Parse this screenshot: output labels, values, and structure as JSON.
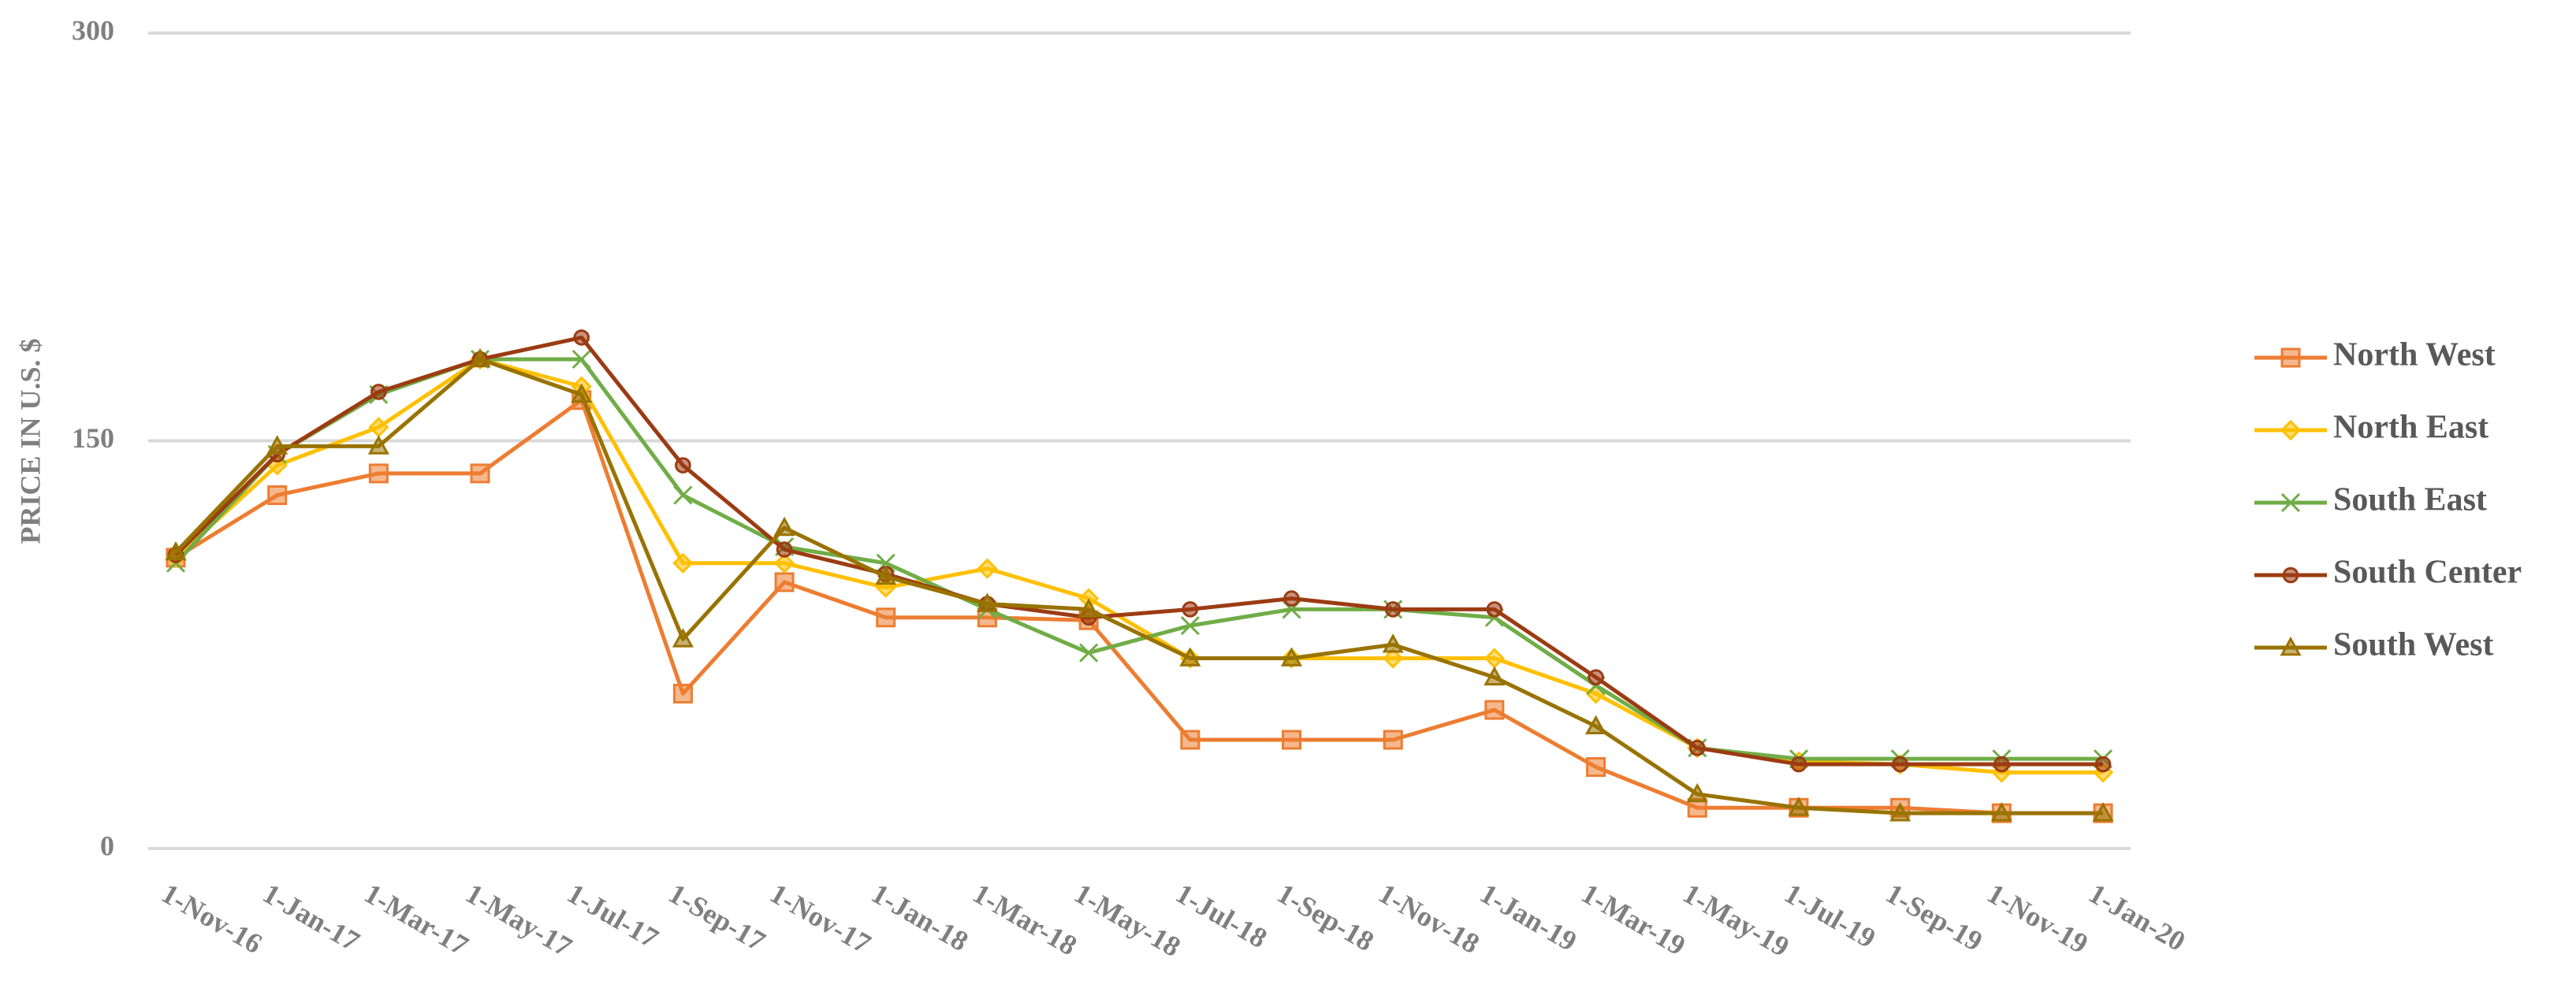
{
  "chart_data": {
    "type": "line",
    "y_label": "PRICE IN U.S. $",
    "categories": [
      "1-Nov-16",
      "1-Jan-17",
      "1-Mar-17",
      "1-May-17",
      "1-Jul-17",
      "1-Sep-17",
      "1-Nov-17",
      "1-Jan-18",
      "1-Mar-18",
      "1-May-18",
      "1-Jul-18",
      "1-Sep-18",
      "1-Nov-18",
      "1-Jan-19",
      "1-Mar-19",
      "1-May-19",
      "1-Jul-19",
      "1-Sep-19",
      "1-Nov-19",
      "1-Jan-20"
    ],
    "series": [
      {
        "name": "North West",
        "color": "#ED7D31",
        "marker": "square",
        "values": [
          107,
          130,
          138,
          138,
          165,
          57,
          98,
          85,
          85,
          84,
          40,
          40,
          40,
          51,
          30,
          15,
          15,
          15,
          13,
          13
        ]
      },
      {
        "name": "North East",
        "color": "#FFC000",
        "marker": "diamond",
        "values": [
          107,
          141,
          155,
          180,
          170,
          105,
          105,
          96,
          103,
          92,
          70,
          70,
          70,
          70,
          57,
          37,
          32,
          31,
          28,
          28
        ]
      },
      {
        "name": "South East",
        "color": "#70AD47",
        "marker": "x",
        "values": [
          105,
          145,
          167,
          180,
          180,
          130,
          111,
          105,
          88,
          72,
          82,
          88,
          88,
          85,
          60,
          37,
          33,
          33,
          33,
          33
        ]
      },
      {
        "name": "South Center",
        "color": "#9C3B12",
        "marker": "circle",
        "values": [
          108,
          145,
          168,
          180,
          188,
          141,
          110,
          101,
          90,
          85,
          88,
          92,
          88,
          88,
          63,
          37,
          31,
          31,
          31,
          31
        ]
      },
      {
        "name": "South West",
        "color": "#997300",
        "marker": "triangle",
        "values": [
          109,
          148,
          148,
          180,
          167,
          77,
          118,
          100,
          90,
          88,
          70,
          70,
          75,
          63,
          45,
          20,
          15,
          13,
          13,
          13
        ]
      }
    ],
    "ylim": [
      0,
      300
    ],
    "yticks": [
      0,
      150,
      300
    ],
    "grid": true,
    "legend": "right"
  }
}
